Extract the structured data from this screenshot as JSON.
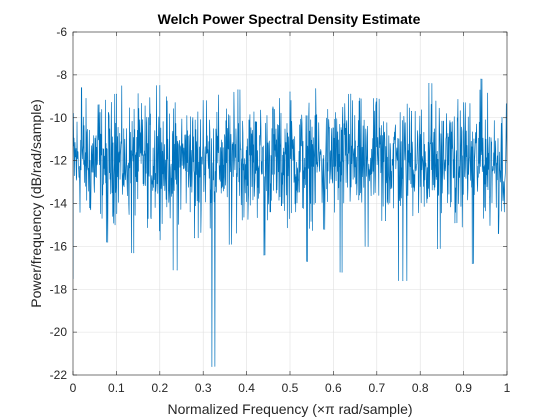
{
  "chart_data": {
    "type": "line",
    "title": "Welch Power Spectral Density Estimate",
    "xlabel": "Normalized Frequency  (×π rad/sample)",
    "ylabel": "Power/frequency (dB/rad/sample)",
    "xlim": [
      0,
      1
    ],
    "ylim": [
      -22,
      -6
    ],
    "xticks": [
      0,
      0.1,
      0.2,
      0.3,
      0.4,
      0.5,
      0.6,
      0.7,
      0.8,
      0.9,
      1
    ],
    "xtick_labels": [
      "0",
      "0.1",
      "0.2",
      "0.3",
      "0.4",
      "0.5",
      "0.6",
      "0.7",
      "0.8",
      "0.9",
      "1"
    ],
    "yticks": [
      -22,
      -20,
      -18,
      -16,
      -14,
      -12,
      -10,
      -8,
      -6
    ],
    "ytick_labels": [
      "-22",
      "-20",
      "-18",
      "-16",
      "-14",
      "-12",
      "-10",
      "-8",
      "-6"
    ],
    "grid": true,
    "series": [
      {
        "color": "#0072BD",
        "x": [
          0,
          0.02,
          0.04,
          0.06,
          0.08,
          0.1,
          0.12,
          0.14,
          0.16,
          0.18,
          0.2,
          0.22,
          0.24,
          0.26,
          0.28,
          0.3,
          0.32,
          0.34,
          0.36,
          0.38,
          0.4,
          0.42,
          0.44,
          0.46,
          0.48,
          0.5,
          0.52,
          0.54,
          0.56,
          0.58,
          0.6,
          0.62,
          0.64,
          0.66,
          0.68,
          0.7,
          0.72,
          0.74,
          0.76,
          0.78,
          0.8,
          0.82,
          0.84,
          0.86,
          0.88,
          0.9,
          0.92,
          0.94,
          0.96,
          0.98,
          1
        ],
        "y": [
          -17.5,
          -8.6,
          -14.2,
          -9.4,
          -15.8,
          -8.9,
          -12.6,
          -16.3,
          -10.1,
          -14.7,
          -8.5,
          -13.4,
          -17.1,
          -10.8,
          -15.6,
          -9.2,
          -21.6,
          -11.4,
          -15.9,
          -8.7,
          -13.9,
          -10.2,
          -16.4,
          -9.6,
          -14.1,
          -8.8,
          -12.9,
          -16.7,
          -9.9,
          -15.2,
          -10.5,
          -17.2,
          -8.9,
          -13.6,
          -16.0,
          -9.1,
          -14.8,
          -11.2,
          -17.6,
          -9.7,
          -13.2,
          -8.4,
          -16.1,
          -10.9,
          -14.9,
          -9.3,
          -16.8,
          -8.2,
          -13.7,
          -15.4,
          -12.1
        ]
      }
    ]
  }
}
